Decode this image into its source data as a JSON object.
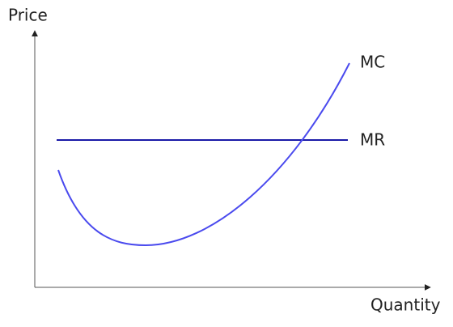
{
  "axes": {
    "y_label": "Price",
    "x_label": "Quantity"
  },
  "curves": [
    {
      "label": "MC"
    },
    {
      "label": "MR"
    }
  ]
}
